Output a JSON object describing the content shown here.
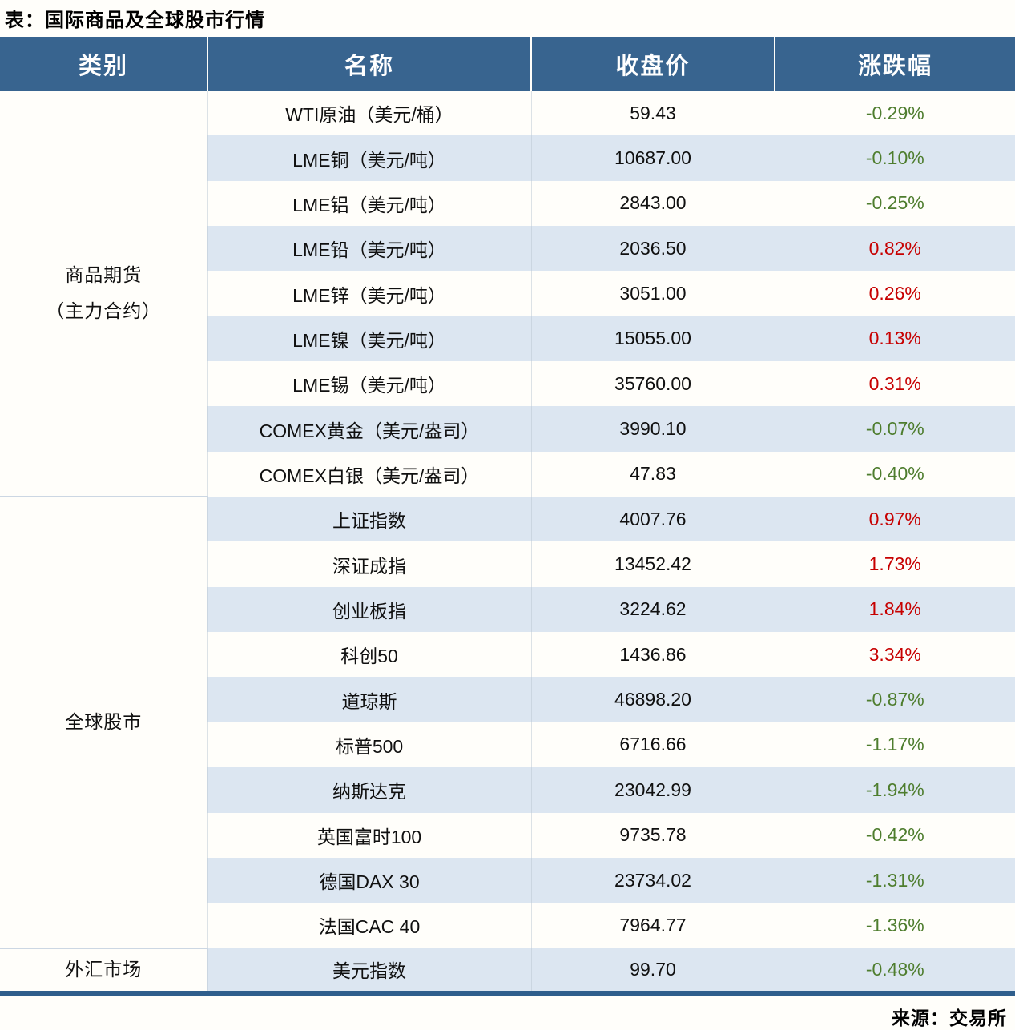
{
  "title": "表：国际商品及全球股市行情",
  "source": "来源：交易所",
  "colors": {
    "header_bg": "#38648f",
    "header_text": "#ffffff",
    "stripe_blue": "#dce6f1",
    "row_white": "#fffefa",
    "positive_red": "#c70000",
    "negative_green": "#4e7d2e",
    "bottom_rule": "#2f5e8c"
  },
  "table": {
    "columns": [
      "类别",
      "名称",
      "收盘价",
      "涨跌幅"
    ],
    "sections": [
      {
        "category_lines": [
          "商品期货",
          "（主力合约）"
        ],
        "rows": [
          {
            "name": "WTI原油（美元/桶）",
            "close": "59.43",
            "change": "-0.29%"
          },
          {
            "name": "LME铜（美元/吨）",
            "close": "10687.00",
            "change": "-0.10%"
          },
          {
            "name": "LME铝（美元/吨）",
            "close": "2843.00",
            "change": "-0.25%"
          },
          {
            "name": "LME铅（美元/吨）",
            "close": "2036.50",
            "change": "0.82%"
          },
          {
            "name": "LME锌（美元/吨）",
            "close": "3051.00",
            "change": "0.26%"
          },
          {
            "name": "LME镍（美元/吨）",
            "close": "15055.00",
            "change": "0.13%"
          },
          {
            "name": "LME锡（美元/吨）",
            "close": "35760.00",
            "change": "0.31%"
          },
          {
            "name": "COMEX黄金（美元/盎司）",
            "close": "3990.10",
            "change": "-0.07%"
          },
          {
            "name": "COMEX白银（美元/盎司）",
            "close": "47.83",
            "change": "-0.40%"
          }
        ]
      },
      {
        "category_lines": [
          "全球股市"
        ],
        "rows": [
          {
            "name": "上证指数",
            "close": "4007.76",
            "change": "0.97%"
          },
          {
            "name": "深证成指",
            "close": "13452.42",
            "change": "1.73%"
          },
          {
            "name": "创业板指",
            "close": "3224.62",
            "change": "1.84%"
          },
          {
            "name": "科创50",
            "close": "1436.86",
            "change": "3.34%"
          },
          {
            "name": "道琼斯",
            "close": "46898.20",
            "change": "-0.87%"
          },
          {
            "name": "标普500",
            "close": "6716.66",
            "change": "-1.17%"
          },
          {
            "name": "纳斯达克",
            "close": "23042.99",
            "change": "-1.94%"
          },
          {
            "name": "英国富时100",
            "close": "9735.78",
            "change": "-0.42%"
          },
          {
            "name": "德国DAX 30",
            "close": "23734.02",
            "change": "-1.31%"
          },
          {
            "name": "法国CAC 40",
            "close": "7964.77",
            "change": "-1.36%"
          }
        ]
      },
      {
        "category_lines": [
          "外汇市场"
        ],
        "rows": [
          {
            "name": "美元指数",
            "close": "99.70",
            "change": "-0.48%"
          }
        ]
      }
    ]
  },
  "chart_data": {
    "type": "table",
    "title": "表：国际商品及全球股市行情",
    "columns": [
      "类别",
      "名称",
      "收盘价",
      "涨跌幅"
    ],
    "rows": [
      [
        "商品期货（主力合约）",
        "WTI原油（美元/桶）",
        59.43,
        "-0.29%"
      ],
      [
        "商品期货（主力合约）",
        "LME铜（美元/吨）",
        10687.0,
        "-0.10%"
      ],
      [
        "商品期货（主力合约）",
        "LME铝（美元/吨）",
        2843.0,
        "-0.25%"
      ],
      [
        "商品期货（主力合约）",
        "LME铅（美元/吨）",
        2036.5,
        "0.82%"
      ],
      [
        "商品期货（主力合约）",
        "LME锌（美元/吨）",
        3051.0,
        "0.26%"
      ],
      [
        "商品期货（主力合约）",
        "LME镍（美元/吨）",
        15055.0,
        "0.13%"
      ],
      [
        "商品期货（主力合约）",
        "LME锡（美元/吨）",
        35760.0,
        "0.31%"
      ],
      [
        "商品期货（主力合约）",
        "COMEX黄金（美元/盎司）",
        3990.1,
        "-0.07%"
      ],
      [
        "商品期货（主力合约）",
        "COMEX白银（美元/盎司）",
        47.83,
        "-0.40%"
      ],
      [
        "全球股市",
        "上证指数",
        4007.76,
        "0.97%"
      ],
      [
        "全球股市",
        "深证成指",
        13452.42,
        "1.73%"
      ],
      [
        "全球股市",
        "创业板指",
        3224.62,
        "1.84%"
      ],
      [
        "全球股市",
        "科创50",
        1436.86,
        "3.34%"
      ],
      [
        "全球股市",
        "道琼斯",
        46898.2,
        "-0.87%"
      ],
      [
        "全球股市",
        "标普500",
        6716.66,
        "-1.17%"
      ],
      [
        "全球股市",
        "纳斯达克",
        23042.99,
        "-1.94%"
      ],
      [
        "全球股市",
        "英国富时100",
        9735.78,
        "-0.42%"
      ],
      [
        "全球股市",
        "德国DAX 30",
        23734.02,
        "-1.31%"
      ],
      [
        "全球股市",
        "法国CAC 40",
        7964.77,
        "-1.36%"
      ],
      [
        "外汇市场",
        "美元指数",
        99.7,
        "-0.48%"
      ]
    ],
    "source": "来源：交易所",
    "layout_hints": {
      "striping": "alternating white and light-blue rows",
      "positive_change_color": "red",
      "negative_change_color": "green",
      "legend": "none",
      "grid": "off"
    }
  }
}
